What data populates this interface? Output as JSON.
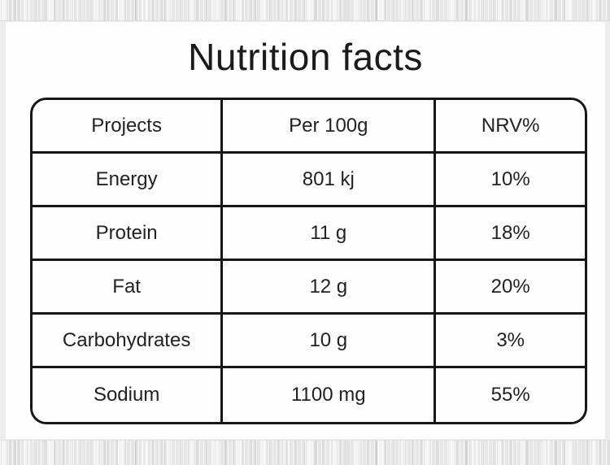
{
  "page": {
    "title": "Nutrition facts"
  },
  "table": {
    "columns": [
      "Projects",
      "Per 100g",
      "NRV%"
    ],
    "rows": [
      {
        "project": "Energy",
        "per_100g": "801 kj",
        "nrv": "10%"
      },
      {
        "project": "Protein",
        "per_100g": "11 g",
        "nrv": "18%"
      },
      {
        "project": "Fat",
        "per_100g": "12 g",
        "nrv": "20%"
      },
      {
        "project": "Carbohydrates",
        "per_100g": "10 g",
        "nrv": "3%"
      },
      {
        "project": "Sodium",
        "per_100g": "1100 mg",
        "nrv": "55%"
      }
    ]
  },
  "colors": {
    "text": "#222222",
    "title_text": "#1b1b1b",
    "table_border": "#161616",
    "content_background": "#fdfdfd",
    "texture_background": "#ebebeb"
  }
}
